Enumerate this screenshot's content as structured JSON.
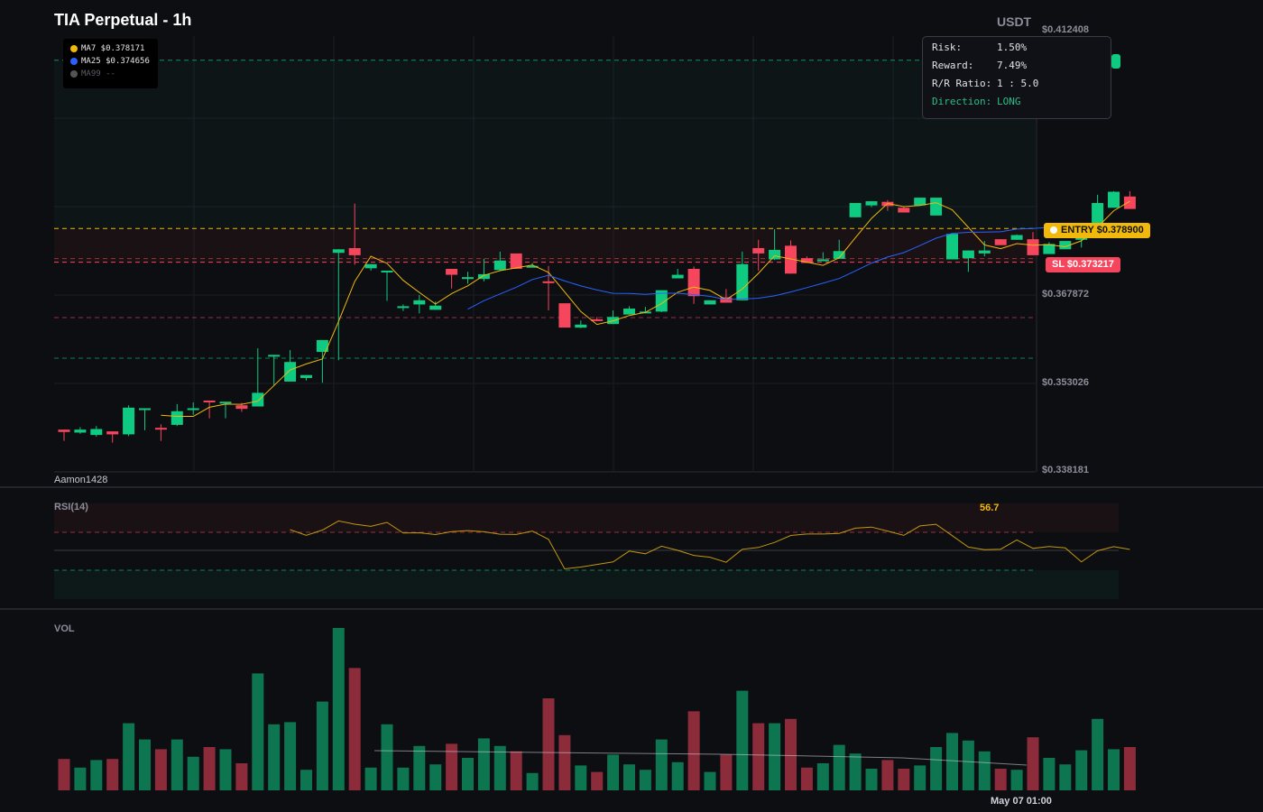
{
  "header": {
    "title": "TIA Perpetual - 1h",
    "quote_currency": "USDT"
  },
  "legend": [
    {
      "label": "MA7 $0.378171",
      "color": "#f0b90b"
    },
    {
      "label": "MA25 $0.374656",
      "color": "#2962ff"
    },
    {
      "label": "MA99 --",
      "color": "#555555"
    }
  ],
  "risk_panel": {
    "risk_label": "Risk:",
    "risk_value": "1.50%",
    "reward_label": "Reward:",
    "reward_value": "7.49%",
    "rr_label": "R/R Ratio:",
    "rr_value": "1 : 5.0",
    "direction_label": "Direction:",
    "direction_value": "LONG"
  },
  "tags": {
    "entry": "ENTRY $0.378900",
    "stop_loss": "SL $0.373217"
  },
  "price_axis": [
    "$0.412408",
    "$0.367872",
    "$0.353026",
    "$0.338181"
  ],
  "owner": "Aamon1428",
  "rsi": {
    "label": "RSI(14)",
    "value": "56.7"
  },
  "volume": {
    "label": "VOL"
  },
  "time_label": "May 07 01:00",
  "colors": {
    "up": "#0ecb81",
    "down": "#f6465d",
    "entry": "#f0b90b",
    "ma7": "#f0b90b",
    "ma25": "#2962ff"
  },
  "chart_data": {
    "type": "candlestick",
    "symbol": "TIA Perpetual",
    "interval": "1h",
    "y_range": [
      0.338181,
      0.412408
    ],
    "levels": {
      "entry": 0.3789,
      "stop_loss": 0.373217,
      "take_profit": 0.40728,
      "range_top": 0.4053,
      "range_bottom": 0.36295
    },
    "candles": [
      [
        0.345,
        0.3446,
        0.3431,
        0.344
      ],
      [
        0.3445,
        0.345,
        0.3443,
        0.3454
      ],
      [
        0.3441,
        0.3451,
        0.3438,
        0.3456
      ],
      [
        0.3447,
        0.3442,
        0.3428,
        0.3447
      ],
      [
        0.3442,
        0.3487,
        0.3439,
        0.3491
      ],
      [
        0.3484,
        0.3486,
        0.3449,
        0.3451
      ],
      [
        0.3453,
        0.345,
        0.3431,
        0.3459
      ],
      [
        0.3458,
        0.3481,
        0.3456,
        0.3493
      ],
      [
        0.3485,
        0.3486,
        0.3475,
        0.3496
      ],
      [
        0.3499,
        0.3496,
        0.3469,
        0.3492
      ],
      [
        0.3496,
        0.3497,
        0.3469,
        0.3479
      ],
      [
        0.3491,
        0.3485,
        0.348,
        0.3495
      ],
      [
        0.3489,
        0.3512,
        0.3489,
        0.3587
      ],
      [
        0.3575,
        0.3576,
        0.3525,
        0.3553
      ],
      [
        0.3531,
        0.3564,
        0.3537,
        0.3584
      ],
      [
        0.3537,
        0.3542,
        0.3533,
        0.3542
      ],
      [
        0.3581,
        0.3601,
        0.3529,
        0.3563
      ],
      [
        0.3748,
        0.3754,
        0.3567,
        0.3606
      ],
      [
        0.3756,
        0.3744,
        0.3728,
        0.3831
      ],
      [
        0.3722,
        0.3729,
        0.3718,
        0.3728
      ],
      [
        0.3715,
        0.3718,
        0.3667,
        0.3689
      ],
      [
        0.3657,
        0.3658,
        0.3661,
        0.365
      ],
      [
        0.3661,
        0.3668,
        0.3646,
        0.3677
      ],
      [
        0.3652,
        0.3659,
        0.3656,
        0.3666
      ],
      [
        0.3721,
        0.3711,
        0.3688,
        0.3714
      ],
      [
        0.3704,
        0.3707,
        0.3696,
        0.3716
      ],
      [
        0.3704,
        0.3712,
        0.37,
        0.3738
      ],
      [
        0.3719,
        0.3735,
        0.3733,
        0.375
      ],
      [
        0.3747,
        0.3721,
        0.3741,
        0.3736
      ],
      [
        0.3725,
        0.3726,
        0.3731,
        0.3726
      ],
      [
        0.37,
        0.3698,
        0.3651,
        0.3726
      ],
      [
        0.3663,
        0.3622,
        0.3638,
        0.3646
      ],
      [
        0.3622,
        0.3627,
        0.3634,
        0.3621
      ],
      [
        0.3636,
        0.3633,
        0.364,
        0.3637
      ],
      [
        0.3628,
        0.364,
        0.3651,
        0.3639
      ],
      [
        0.3644,
        0.3654,
        0.3658,
        0.3653
      ],
      [
        0.3648,
        0.3649,
        0.3657,
        0.365
      ],
      [
        0.3649,
        0.3685,
        0.3648,
        0.3685
      ],
      [
        0.3705,
        0.3711,
        0.3709,
        0.3721
      ],
      [
        0.3721,
        0.3675,
        0.3662,
        0.3725
      ],
      [
        0.3661,
        0.3668,
        0.3665,
        0.3668
      ],
      [
        0.3673,
        0.3664,
        0.3666,
        0.3687
      ],
      [
        0.3668,
        0.3729,
        0.3673,
        0.375
      ],
      [
        0.3756,
        0.3747,
        0.3718,
        0.377
      ],
      [
        0.3737,
        0.3753,
        0.3736,
        0.3788
      ],
      [
        0.376,
        0.3713,
        0.3735,
        0.3769
      ],
      [
        0.3739,
        0.3731,
        0.3731,
        0.3742
      ],
      [
        0.3734,
        0.3737,
        0.3735,
        0.3749
      ],
      [
        0.3738,
        0.3751,
        0.3741,
        0.377
      ],
      [
        0.3808,
        0.3832,
        0.3812,
        0.3812
      ],
      [
        0.3828,
        0.3835,
        0.3833,
        0.3825
      ],
      [
        0.3834,
        0.3827,
        0.3837,
        0.3819
      ],
      [
        0.3824,
        0.3816,
        0.3816,
        0.3826
      ],
      [
        0.3828,
        0.3841,
        0.3839,
        0.3836
      ],
      [
        0.3811,
        0.3841,
        0.3816,
        0.3814
      ],
      [
        0.3737,
        0.378,
        0.3749,
        0.3743
      ],
      [
        0.3739,
        0.3752,
        0.3716,
        0.3751
      ],
      [
        0.3747,
        0.3752,
        0.3742,
        0.3768
      ],
      [
        0.3771,
        0.3761,
        0.3763,
        0.3762
      ],
      [
        0.377,
        0.3778,
        0.3778,
        0.3779
      ],
      [
        0.3771,
        0.3744,
        0.3776,
        0.3783
      ],
      [
        0.3746,
        0.3763,
        0.3752,
        0.3766
      ],
      [
        0.3754,
        0.3768,
        0.3764,
        0.3768
      ],
      [
        0.377,
        0.3774,
        0.3757,
        0.3784
      ],
      [
        0.379,
        0.3832,
        0.3816,
        0.3846
      ],
      [
        0.3824,
        0.3851,
        0.3839,
        0.3852
      ],
      [
        0.3843,
        0.3822,
        0.383,
        0.3852
      ]
    ],
    "ma7": [],
    "ma25": [],
    "rsi14": [],
    "volume": []
  }
}
